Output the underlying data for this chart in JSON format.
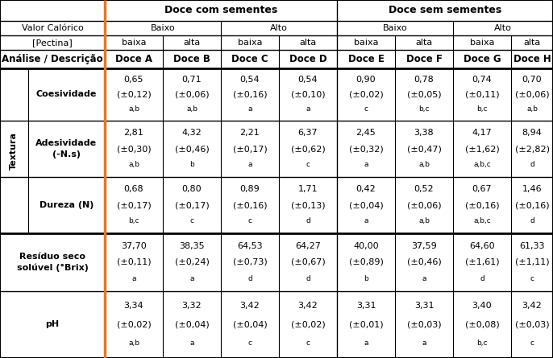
{
  "col_bounds": [
    0,
    130,
    202,
    274,
    346,
    418,
    490,
    562,
    634,
    686
  ],
  "row_bounds": [
    445,
    419,
    401,
    383,
    360,
    295,
    225,
    155,
    83,
    0
  ],
  "orange_color": "#E87722",
  "black": "#000000",
  "blue_line": "#5B9BD5",
  "header1": {
    "doce_com": "Doce com sementes",
    "doce_sem": "Doce sem sementes"
  },
  "header2": {
    "valor_calorico": "Valor Calórico",
    "baixo": "Baixo",
    "alto": "Alto"
  },
  "header3": {
    "pectina": "[Pectina]",
    "labels": [
      "baixa",
      "alta",
      "baixa",
      "alta",
      "baixa",
      "alta",
      "baixa",
      "alta"
    ]
  },
  "header4": {
    "analise": "Análise / Descrição",
    "doces": [
      "Doce A",
      "Doce B",
      "Doce C",
      "Doce D",
      "Doce E",
      "Doce F",
      "Doce G",
      "Doce H"
    ]
  },
  "textura_label": "Textura",
  "data_rows": [
    {
      "label": "Coesividade",
      "in_textura": true,
      "row_idx": 4,
      "values": [
        [
          "0,65",
          "(±0,12)",
          "a,b"
        ],
        [
          "0,71",
          "(±0,06)",
          "a,b"
        ],
        [
          "0,54",
          "(±0,16)",
          "a"
        ],
        [
          "0,54",
          "(±0,10)",
          "a"
        ],
        [
          "0,90",
          "(±0,02)",
          "c"
        ],
        [
          "0,78",
          "(±0,05)",
          "b,c"
        ],
        [
          "0,74",
          "(±0,11)",
          "b,c"
        ],
        [
          "0,70",
          "(±0,06)",
          "a,b"
        ]
      ]
    },
    {
      "label": "Adesividade\n(-N.s)",
      "in_textura": true,
      "row_idx": 5,
      "values": [
        [
          "2,81",
          "(±0,30)",
          "a,b"
        ],
        [
          "4,32",
          "(±0,46)",
          "b"
        ],
        [
          "2,21",
          "(±0,17)",
          "a"
        ],
        [
          "6,37",
          "(±0,62)",
          "c"
        ],
        [
          "2,45",
          "(±0,32)",
          "a"
        ],
        [
          "3,38",
          "(±0,47)",
          "a,b"
        ],
        [
          "4,17",
          "(±1,62)",
          "a,b,c"
        ],
        [
          "8,94",
          "(±2,82)",
          "d"
        ]
      ]
    },
    {
      "label": "Dureza (N)",
      "in_textura": true,
      "row_idx": 6,
      "values": [
        [
          "0,68",
          "(±0,17)",
          "b,c"
        ],
        [
          "0,80",
          "(±0,17)",
          "c"
        ],
        [
          "0,89",
          "(±0,16)",
          "c"
        ],
        [
          "1,71",
          "(±0,13)",
          "d"
        ],
        [
          "0,42",
          "(±0,04)",
          "a"
        ],
        [
          "0,52",
          "(±0,06)",
          "a,b"
        ],
        [
          "0,67",
          "(±0,16)",
          "a,b,c"
        ],
        [
          "1,46",
          "(±0,16)",
          "d"
        ]
      ]
    },
    {
      "label": "Resíduo seco\nsolúvel (°Brix)",
      "in_textura": false,
      "row_idx": 7,
      "values": [
        [
          "37,70",
          "(±0,11)",
          "a"
        ],
        [
          "38,35",
          "(±0,24)",
          "a"
        ],
        [
          "64,53",
          "(±0,73)",
          "d"
        ],
        [
          "64,27",
          "(±0,67)",
          "d"
        ],
        [
          "40,00",
          "(±0,89)",
          "b"
        ],
        [
          "37,59",
          "(±0,46)",
          "a"
        ],
        [
          "64,60",
          "(±1,61)",
          "d"
        ],
        [
          "61,33",
          "(±1,11)",
          "c"
        ]
      ]
    },
    {
      "label": "pH",
      "in_textura": false,
      "row_idx": 8,
      "values": [
        [
          "3,34",
          "(±0,02)",
          "a,b"
        ],
        [
          "3,32",
          "(±0,04)",
          "a"
        ],
        [
          "3,42",
          "(±0,04)",
          "c"
        ],
        [
          "3,42",
          "(±0,02)",
          "c"
        ],
        [
          "3,31",
          "(±0,01)",
          "a"
        ],
        [
          "3,31",
          "(±0,03)",
          "a"
        ],
        [
          "3,40",
          "(±0,08)",
          "b,c"
        ],
        [
          "3,42",
          "(±0,03)",
          "c"
        ]
      ]
    }
  ]
}
